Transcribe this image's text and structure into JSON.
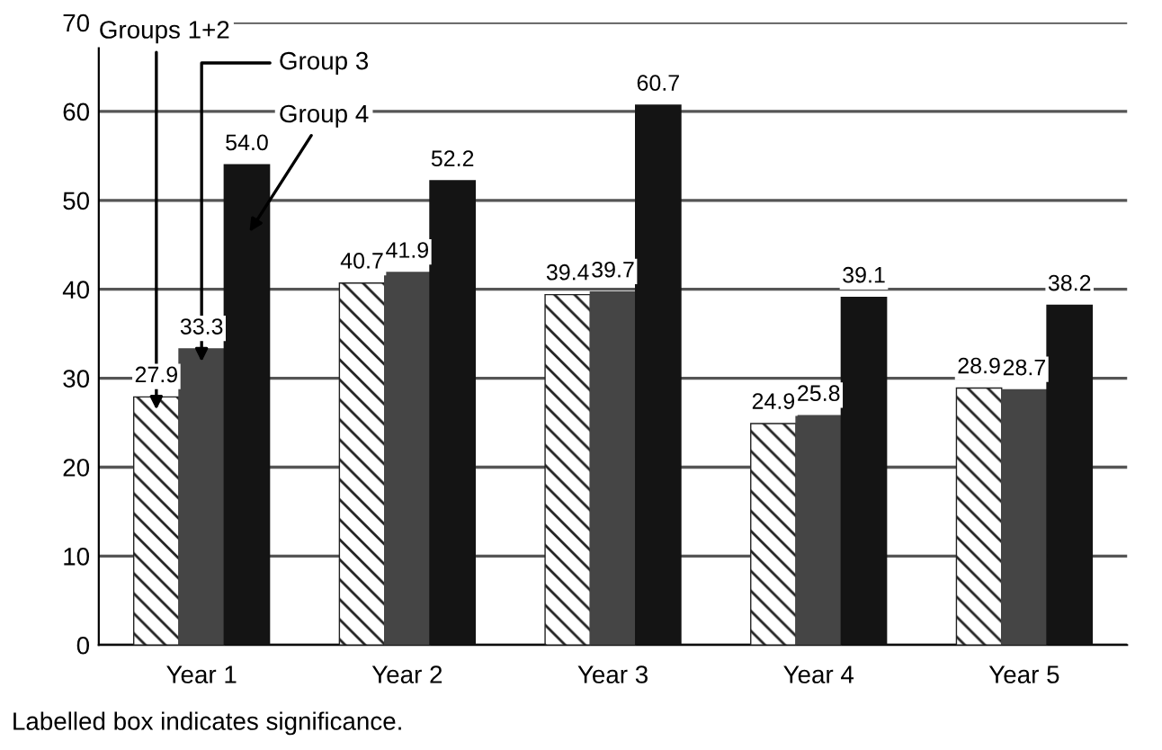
{
  "chart_data": {
    "type": "bar",
    "categories": [
      "Year 1",
      "Year 2",
      "Year 3",
      "Year 4",
      "Year 5"
    ],
    "series": [
      {
        "name": "Groups 1+2",
        "color": "#222222",
        "values": [
          27.9,
          40.7,
          39.4,
          24.9,
          28.9
        ],
        "value_labels": [
          "27.9",
          "40.7",
          "39.4",
          "24.9",
          "28.9"
        ]
      },
      {
        "name": "Group 3",
        "color": "#454545",
        "values": [
          33.3,
          41.9,
          39.7,
          25.8,
          28.7
        ],
        "value_labels": [
          "33.3",
          "41.9",
          "39.7",
          "25.8",
          "28.7"
        ]
      },
      {
        "name": "Group 4",
        "color": "#141414",
        "values": [
          54.0,
          52.2,
          60.7,
          39.1,
          38.2
        ],
        "value_labels": [
          "54.0",
          "52.2",
          "60.7",
          "39.1",
          "38.2"
        ]
      }
    ],
    "ylim": [
      0,
      70
    ],
    "yticks": [
      0,
      10,
      20,
      30,
      40,
      50,
      60,
      70
    ],
    "grid": "y",
    "legend": false,
    "annotations": [
      "Labelled box indicates significance."
    ]
  }
}
